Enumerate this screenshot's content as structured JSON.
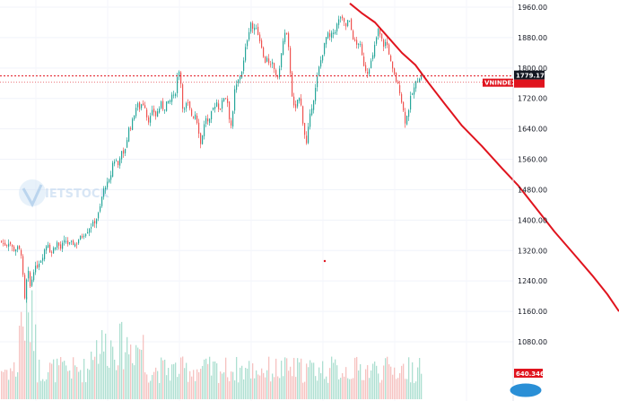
{
  "chart_data": {
    "type": "candlestick",
    "symbol": "VNINDEX",
    "last_price": "1779.17",
    "volume_tag": "640.346",
    "yaxis_ticks": [
      "1960.00",
      "1880.00",
      "1800.00",
      "1720.00",
      "1640.00",
      "1560.00",
      "1480.00",
      "1400.00",
      "1320.00",
      "1240.00",
      "1160.00",
      "1080.00"
    ],
    "ylim": [
      1020,
      1980
    ],
    "grid": true,
    "up_color": "#26a69a",
    "down_color": "#ef5350",
    "trendline_color": "#e0141e",
    "price_keypoints": [
      [
        0,
        1345
      ],
      [
        3,
        1338
      ],
      [
        6,
        1335
      ],
      [
        10,
        1345
      ],
      [
        12,
        1330
      ],
      [
        14,
        1325
      ],
      [
        16,
        1320
      ],
      [
        18,
        1330
      ],
      [
        20,
        1322
      ],
      [
        22,
        1320
      ],
      [
        24,
        1305
      ],
      [
        25,
        1250
      ],
      [
        26,
        1180
      ],
      [
        27,
        1190
      ],
      [
        29,
        1240
      ],
      [
        31,
        1260
      ],
      [
        33,
        1225
      ],
      [
        35,
        1245
      ],
      [
        37,
        1270
      ],
      [
        40,
        1275
      ],
      [
        43,
        1290
      ],
      [
        46,
        1300
      ],
      [
        50,
        1330
      ],
      [
        53,
        1340
      ],
      [
        56,
        1310
      ],
      [
        60,
        1330
      ],
      [
        63,
        1340
      ],
      [
        67,
        1325
      ],
      [
        70,
        1340
      ],
      [
        73,
        1345
      ],
      [
        76,
        1335
      ],
      [
        80,
        1340
      ],
      [
        84,
        1335
      ],
      [
        87,
        1350
      ],
      [
        90,
        1355
      ],
      [
        93,
        1365
      ],
      [
        96,
        1370
      ],
      [
        99,
        1380
      ],
      [
        103,
        1390
      ],
      [
        106,
        1400
      ],
      [
        110,
        1420
      ],
      [
        113,
        1460
      ],
      [
        116,
        1490
      ],
      [
        119,
        1495
      ],
      [
        122,
        1505
      ],
      [
        125,
        1550
      ],
      [
        128,
        1560
      ],
      [
        131,
        1545
      ],
      [
        134,
        1580
      ],
      [
        137,
        1570
      ],
      [
        140,
        1600
      ],
      [
        143,
        1640
      ],
      [
        146,
        1650
      ],
      [
        149,
        1680
      ],
      [
        152,
        1705
      ],
      [
        155,
        1695
      ],
      [
        158,
        1710
      ],
      [
        161,
        1700
      ],
      [
        164,
        1660
      ],
      [
        167,
        1670
      ],
      [
        170,
        1690
      ],
      [
        173,
        1675
      ],
      [
        176,
        1690
      ],
      [
        179,
        1705
      ],
      [
        182,
        1690
      ],
      [
        185,
        1710
      ],
      [
        188,
        1705
      ],
      [
        191,
        1730
      ],
      [
        194,
        1720
      ],
      [
        197,
        1775
      ],
      [
        199,
        1795
      ],
      [
        201,
        1760
      ],
      [
        203,
        1700
      ],
      [
        205,
        1690
      ],
      [
        208,
        1710
      ],
      [
        211,
        1690
      ],
      [
        214,
        1670
      ],
      [
        217,
        1680
      ],
      [
        220,
        1650
      ],
      [
        223,
        1600
      ],
      [
        226,
        1640
      ],
      [
        229,
        1670
      ],
      [
        232,
        1650
      ],
      [
        235,
        1680
      ],
      [
        238,
        1700
      ],
      [
        241,
        1710
      ],
      [
        244,
        1690
      ],
      [
        247,
        1710
      ],
      [
        250,
        1730
      ],
      [
        253,
        1710
      ],
      [
        255,
        1670
      ],
      [
        257,
        1650
      ],
      [
        259,
        1680
      ],
      [
        261,
        1740
      ],
      [
        264,
        1760
      ],
      [
        267,
        1780
      ],
      [
        270,
        1800
      ],
      [
        273,
        1850
      ],
      [
        276,
        1890
      ],
      [
        279,
        1920
      ],
      [
        282,
        1895
      ],
      [
        285,
        1910
      ],
      [
        288,
        1880
      ],
      [
        291,
        1860
      ],
      [
        294,
        1810
      ],
      [
        297,
        1830
      ],
      [
        300,
        1800
      ],
      [
        303,
        1810
      ],
      [
        306,
        1790
      ],
      [
        309,
        1770
      ],
      [
        312,
        1820
      ],
      [
        315,
        1870
      ],
      [
        318,
        1900
      ],
      [
        321,
        1850
      ],
      [
        323,
        1790
      ],
      [
        326,
        1700
      ],
      [
        329,
        1690
      ],
      [
        332,
        1730
      ],
      [
        335,
        1700
      ],
      [
        338,
        1640
      ],
      [
        341,
        1600
      ],
      [
        344,
        1660
      ],
      [
        347,
        1700
      ],
      [
        350,
        1730
      ],
      [
        352,
        1760
      ],
      [
        355,
        1800
      ],
      [
        358,
        1830
      ],
      [
        361,
        1860
      ],
      [
        364,
        1890
      ],
      [
        367,
        1880
      ],
      [
        370,
        1890
      ],
      [
        373,
        1900
      ],
      [
        376,
        1920
      ],
      [
        379,
        1935
      ],
      [
        382,
        1920
      ],
      [
        385,
        1910
      ],
      [
        388,
        1930
      ],
      [
        391,
        1900
      ],
      [
        394,
        1870
      ],
      [
        397,
        1860
      ],
      [
        400,
        1870
      ],
      [
        403,
        1830
      ],
      [
        406,
        1800
      ],
      [
        409,
        1790
      ],
      [
        412,
        1810
      ],
      [
        415,
        1830
      ],
      [
        418,
        1870
      ],
      [
        421,
        1900
      ],
      [
        424,
        1880
      ],
      [
        427,
        1860
      ],
      [
        430,
        1870
      ],
      [
        433,
        1840
      ],
      [
        436,
        1800
      ],
      [
        439,
        1780
      ],
      [
        442,
        1760
      ],
      [
        445,
        1740
      ],
      [
        448,
        1700
      ],
      [
        451,
        1660
      ],
      [
        454,
        1680
      ],
      [
        457,
        1720
      ],
      [
        460,
        1740
      ],
      [
        463,
        1760
      ],
      [
        466,
        1775
      ],
      [
        469,
        1779
      ]
    ],
    "trendline_points": [
      [
        390,
        1970
      ],
      [
        403,
        1945
      ],
      [
        418,
        1920
      ],
      [
        433,
        1880
      ],
      [
        448,
        1840
      ],
      [
        463,
        1808
      ],
      [
        478,
        1760
      ],
      [
        496,
        1705
      ],
      [
        515,
        1648
      ],
      [
        537,
        1595
      ],
      [
        560,
        1535
      ],
      [
        578,
        1490
      ],
      [
        598,
        1430
      ],
      [
        618,
        1370
      ],
      [
        640,
        1310
      ],
      [
        660,
        1255
      ],
      [
        677,
        1205
      ],
      [
        690,
        1160
      ]
    ]
  }
}
